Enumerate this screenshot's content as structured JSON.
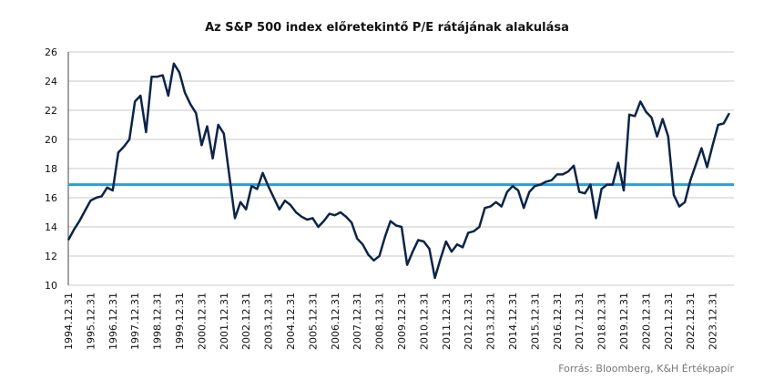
{
  "chart_data": {
    "type": "line",
    "title": "Az S&P 500 index előretekintő P/E rátájának alakulása",
    "source": "Forrás: Bloomberg, K&H Értékpapír",
    "categories": [
      "1994.12.31",
      null,
      null,
      null,
      "1995.12.31",
      null,
      null,
      null,
      "1996.12.31",
      null,
      null,
      null,
      "1997.12.31",
      null,
      null,
      null,
      "1998.12.31",
      null,
      null,
      null,
      "1999.12.31",
      null,
      null,
      null,
      "2000.12.31",
      null,
      null,
      null,
      "2001.12.31",
      null,
      null,
      null,
      "2002.12.31",
      null,
      null,
      null,
      "2003.12.31",
      null,
      null,
      null,
      "2004.12.31",
      null,
      null,
      null,
      "2005.12.31",
      null,
      null,
      null,
      "2006.12.31",
      null,
      null,
      null,
      "2007.12.31",
      null,
      null,
      null,
      "2008.12.31",
      null,
      null,
      null,
      "2009.12.31",
      null,
      null,
      null,
      "2010.12.31",
      null,
      null,
      null,
      "2011.12.31",
      null,
      null,
      null,
      "2012.12.31",
      null,
      null,
      null,
      "2013.12.31",
      null,
      null,
      null,
      "2014.12.31",
      null,
      null,
      null,
      "2015.12.31",
      null,
      null,
      null,
      "2016.12.31",
      null,
      null,
      null,
      "2017.12.31",
      null,
      null,
      null,
      "2018.12.31",
      null,
      null,
      null,
      "2019.12.31",
      null,
      null,
      null,
      "2020.12.31",
      null,
      null,
      null,
      "2021.12.31",
      null,
      null,
      null,
      "2022.12.31",
      null,
      null,
      null,
      "2023.12.31",
      null,
      null,
      null
    ],
    "series": [
      {
        "color": "#0c2447",
        "values": [
          13.1,
          13.8,
          14.4,
          15.1,
          15.8,
          16.0,
          16.1,
          16.7,
          16.5,
          19.1,
          19.5,
          20.0,
          22.6,
          23.0,
          20.5,
          24.3,
          24.3,
          24.4,
          23.0,
          25.2,
          24.6,
          23.2,
          22.4,
          21.8,
          19.6,
          20.9,
          18.7,
          21.0,
          20.4,
          17.5,
          14.6,
          15.7,
          15.2,
          16.8,
          16.6,
          17.7,
          16.8,
          16.0,
          15.2,
          15.8,
          15.5,
          15.0,
          14.7,
          14.5,
          14.6,
          14.0,
          14.4,
          14.9,
          14.8,
          15.0,
          14.7,
          14.3,
          13.2,
          12.8,
          12.1,
          11.7,
          12.0,
          13.3,
          14.4,
          14.1,
          14.0,
          11.4,
          12.3,
          13.1,
          13.0,
          12.5,
          10.5,
          11.8,
          13.0,
          12.3,
          12.8,
          12.6,
          13.6,
          13.7,
          14.0,
          15.3,
          15.4,
          15.7,
          15.4,
          16.4,
          16.8,
          16.5,
          15.3,
          16.4,
          16.8,
          16.9,
          17.1,
          17.2,
          17.6,
          17.6,
          17.8,
          18.2,
          16.4,
          16.3,
          16.9,
          14.6,
          16.6,
          16.9,
          16.9,
          18.4,
          16.5,
          21.7,
          21.6,
          22.6,
          21.9,
          21.5,
          20.2,
          21.4,
          20.2,
          16.2,
          15.4,
          15.7,
          17.2,
          18.3,
          19.4,
          18.1,
          19.6,
          21.0,
          21.1,
          21.8
        ]
      }
    ],
    "reference_line": {
      "value": 16.9,
      "color": "#2a9fd8"
    },
    "ylim": [
      10,
      26
    ],
    "yticks": [
      10,
      12,
      14,
      16,
      18,
      20,
      22,
      24,
      26
    ],
    "grid": true
  }
}
